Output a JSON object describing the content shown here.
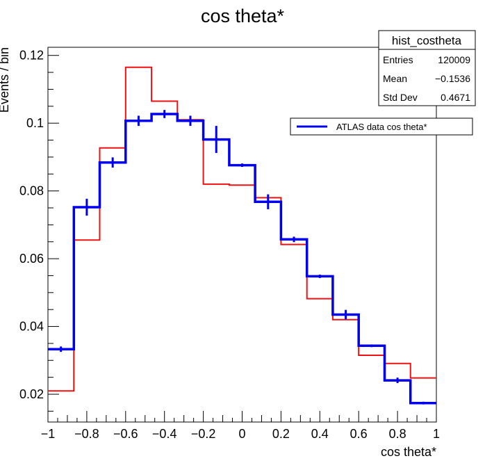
{
  "chart_data": {
    "type": "line",
    "title": "cos theta*",
    "xlabel": "cos theta*",
    "ylabel": "Events / bin",
    "xlim": [
      -1,
      1
    ],
    "ylim": [
      0.0118,
      0.1224
    ],
    "x_ticks": [
      -1,
      -0.8,
      -0.6,
      -0.4,
      -0.2,
      0,
      0.2,
      0.4,
      0.6,
      0.8,
      1
    ],
    "x_tick_labels": [
      "−1",
      "−0.8",
      "−0.6",
      "−0.4",
      "−0.2",
      "0",
      "0.2",
      "0.4",
      "0.6",
      "0.8",
      "1"
    ],
    "y_ticks": [
      0.02,
      0.04,
      0.06,
      0.08,
      0.1,
      0.12
    ],
    "y_tick_labels": [
      "0.02",
      "0.04",
      "0.06",
      "0.08",
      "0.1",
      "0.12"
    ],
    "bin_edges": [
      -1.0,
      -0.8667,
      -0.7333,
      -0.6,
      -0.4667,
      -0.3333,
      -0.2,
      -0.0667,
      0.0667,
      0.2,
      0.3333,
      0.4667,
      0.6,
      0.7333,
      0.8667,
      1.0
    ],
    "series": [
      {
        "color": "#ee1111",
        "style": "hist",
        "values": [
          0.021,
          0.0655,
          0.0927,
          0.1165,
          0.1065,
          0.101,
          0.082,
          0.0817,
          0.078,
          0.0642,
          0.0482,
          0.042,
          0.0315,
          0.0291,
          0.0248
        ]
      },
      {
        "name": "ATLAS data cos theta*",
        "color": "#0000ee",
        "style": "hist_err",
        "values": [
          0.0333,
          0.0752,
          0.0884,
          0.1007,
          0.1027,
          0.1007,
          0.0952,
          0.0876,
          0.0768,
          0.0657,
          0.0548,
          0.0435,
          0.0343,
          0.0241,
          0.0174
        ],
        "errors": [
          0.0008,
          0.0025,
          0.0015,
          0.0015,
          0.0012,
          0.0015,
          0.004,
          0.0005,
          0.0022,
          0.0008,
          0.0005,
          0.0014,
          0.0004,
          0.0008,
          0.0004
        ]
      }
    ],
    "legend": {
      "position": "top-right",
      "entries": [
        "ATLAS data cos theta*"
      ]
    },
    "stats_box": {
      "title": "hist_costheta",
      "rows": [
        {
          "label": "Entries",
          "value": "120009"
        },
        {
          "label": "Mean",
          "value": "−0.1536"
        },
        {
          "label": "Std Dev",
          "value": "0.4671"
        }
      ]
    },
    "grid": false
  }
}
